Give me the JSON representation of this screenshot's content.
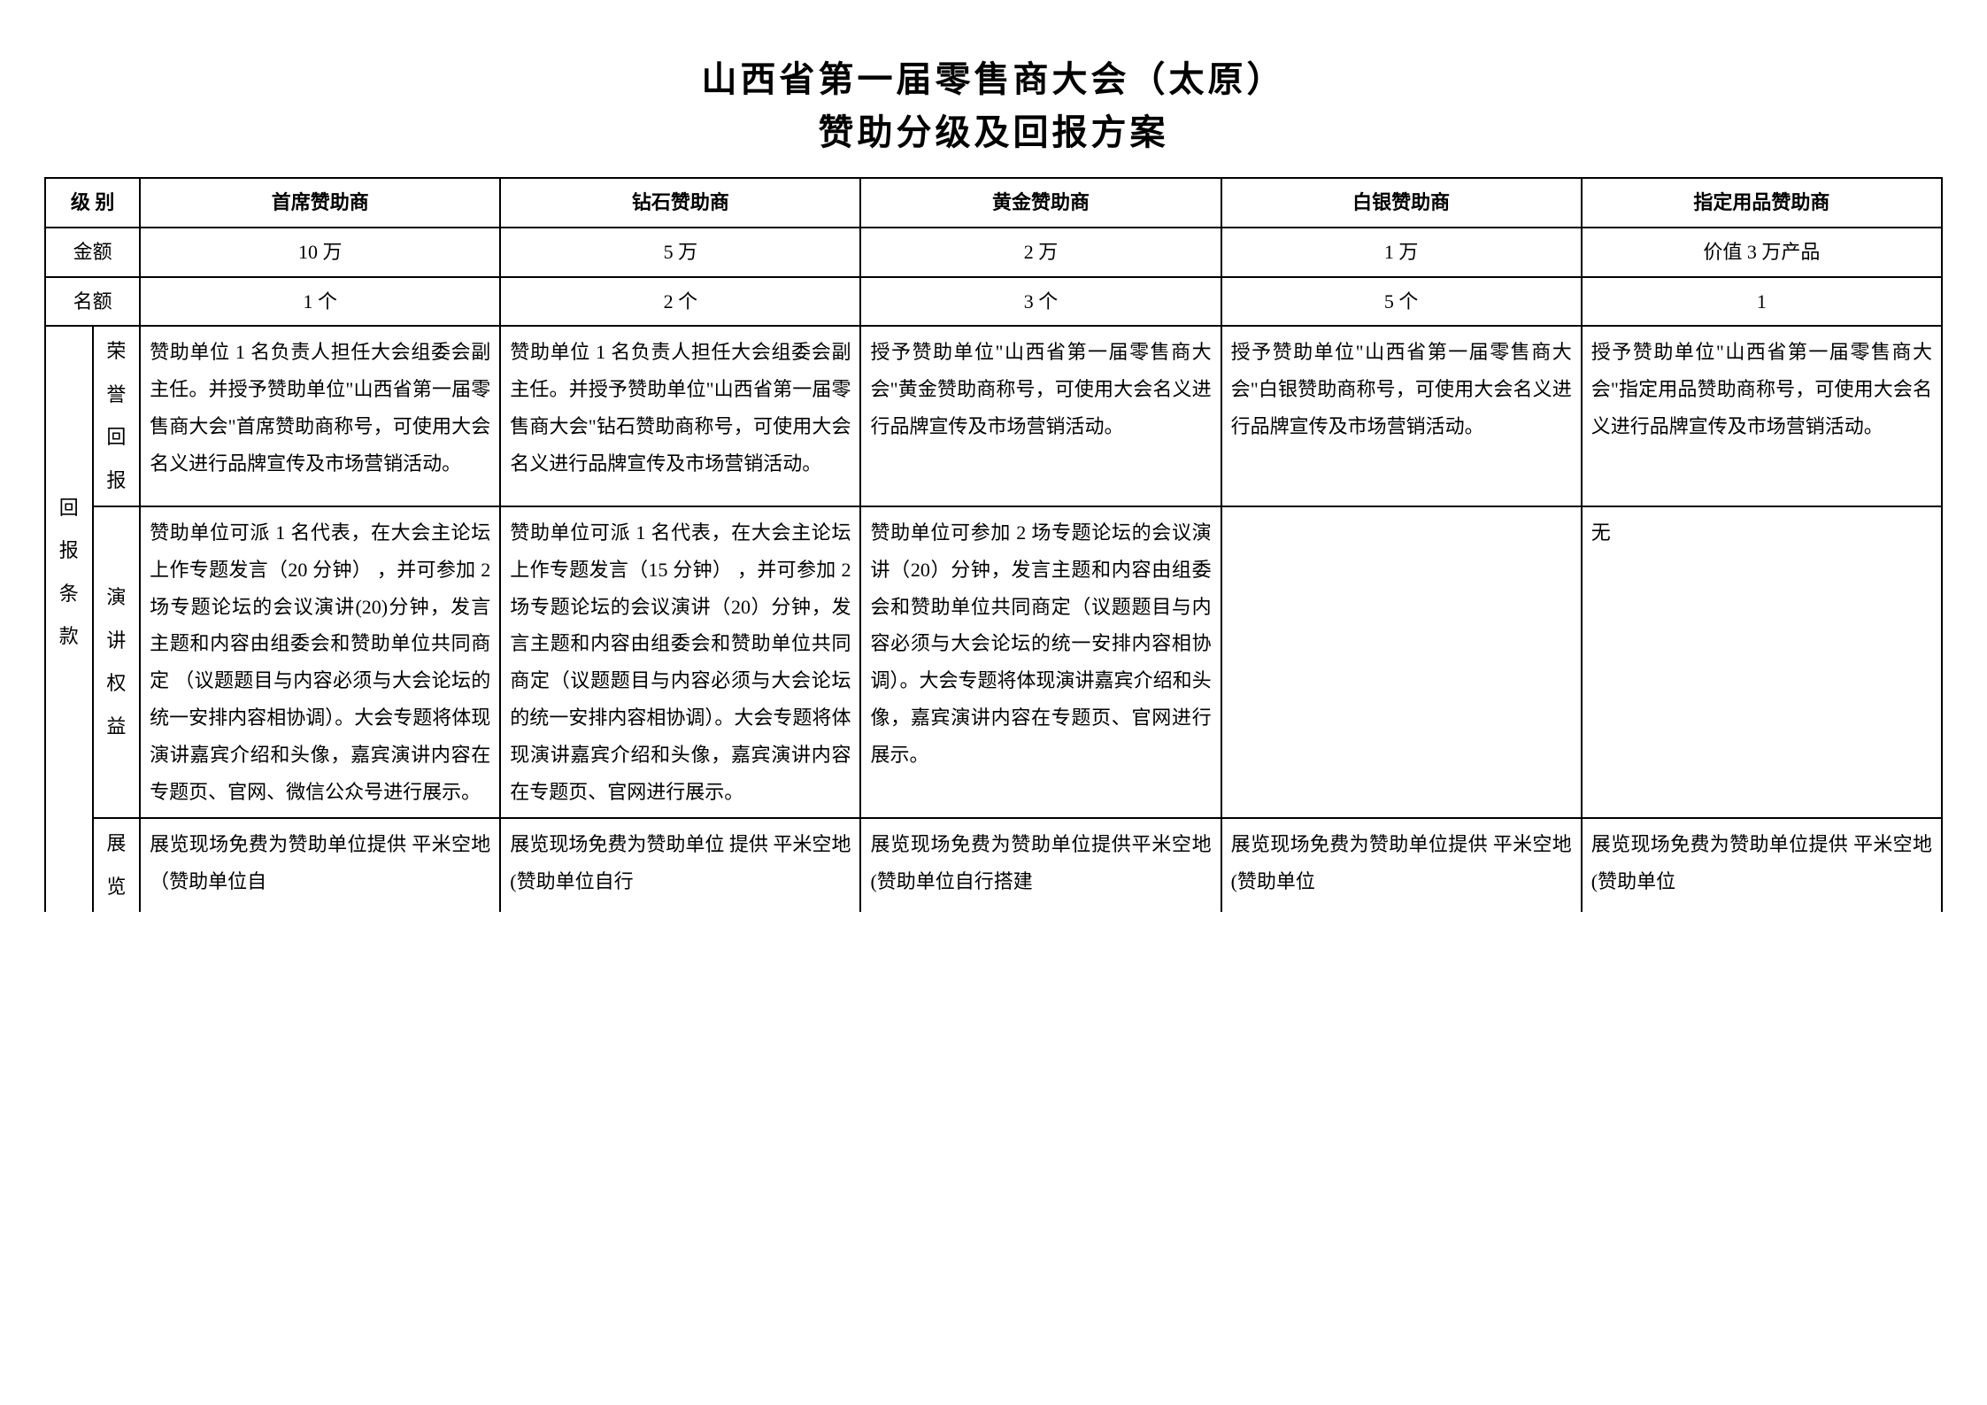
{
  "title": {
    "main": "山西省第一届零售商大会（太原）",
    "sub": "赞助分级及回报方案"
  },
  "headers": {
    "level": "级  别",
    "amount": "金额",
    "quota": "名额",
    "returns": "回报条款"
  },
  "row_labels": {
    "honor": "荣誉回报",
    "speech": "演讲权益",
    "exhibition": "展览"
  },
  "columns": [
    {
      "name": "首席赞助商",
      "amount": "10 万",
      "quota": "1 个",
      "honor": "赞助单位 1 名负责人担任大会组委会副主任。并授予赞助单位\"山西省第一届零售商大会\"首席赞助商称号，可使用大会名义进行品牌宣传及市场营销活动。",
      "speech": "赞助单位可派 1 名代表，在大会主论坛上作专题发言（20 分钟） ，并可参加 2 场专题论坛的会议演讲(20)分钟，发言主题和内容由组委会和赞助单位共同商定 （议题题目与内容必须与大会论坛的统一安排内容相协调）。大会专题将体现演讲嘉宾介绍和头像，嘉宾演讲内容在专题页、官网、微信公众号进行展示。",
      "exhibition": "展览现场免费为赞助单位提供  平米空地（赞助单位自"
    },
    {
      "name": "钻石赞助商",
      "amount": "5 万",
      "quota": "2 个",
      "honor": "赞助单位 1 名负责人担任大会组委会副主任。并授予赞助单位\"山西省第一届零售商大会\"钻石赞助商称号，可使用大会名义进行品牌宣传及市场营销活动。",
      "speech": "赞助单位可派 1 名代表，在大会主论坛上作专题发言（15 分钟） ，并可参加 2 场专题论坛的会议演讲（20）分钟，发言主题和内容由组委会和赞助单位共同商定（议题题目与内容必须与大会论坛的统一安排内容相协调）。大会专题将体现演讲嘉宾介绍和头像，嘉宾演讲内容在专题页、官网进行展示。",
      "exhibition": "展览现场免费为赞助单位 提供  平米空地(赞助单位自行"
    },
    {
      "name": "黄金赞助商",
      "amount": "2 万",
      "quota": "3 个",
      "honor": "授予赞助单位\"山西省第一届零售商大会\"黄金赞助商称号，可使用大会名义进行品牌宣传及市场营销活动。",
      "speech": "赞助单位可参加 2 场专题论坛的会议演讲（20）分钟，发言主题和内容由组委会和赞助单位共同商定（议题题目与内容必须与大会论坛的统一安排内容相协调）。大会专题将体现演讲嘉宾介绍和头像，嘉宾演讲内容在专题页、官网进行展示。",
      "exhibition": "展览现场免费为赞助单位提供平米空地(赞助单位自行搭建"
    },
    {
      "name": "白银赞助商",
      "amount": "1 万",
      "quota": "5 个",
      "honor": "授予赞助单位\"山西省第一届零售商大会\"白银赞助商称号，可使用大会名义进行品牌宣传及市场营销活动。",
      "speech": "",
      "exhibition": "展览现场免费为赞助单位提供  平米空地(赞助单位"
    },
    {
      "name": "指定用品赞助商",
      "amount": "价值 3 万产品",
      "quota": "1",
      "honor": "授予赞助单位\"山西省第一届零售商大会\"指定用品赞助商称号，可使用大会名义进行品牌宣传及市场营销活动。",
      "speech": "无",
      "exhibition": "展览现场免费为赞助单位提供   平米空地(赞助单位"
    }
  ],
  "styling": {
    "background_color": "#ffffff",
    "border_color": "#000000",
    "text_color": "#000000",
    "title_fontsize": 40,
    "cell_fontsize": 22,
    "line_height": 1.9,
    "font_family": "SimSun"
  }
}
